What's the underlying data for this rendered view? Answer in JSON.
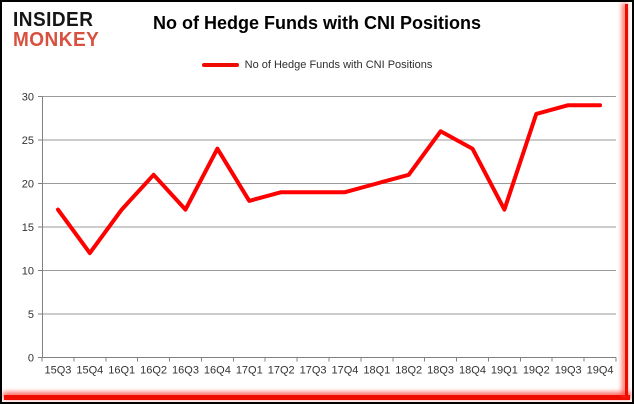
{
  "branding": {
    "line1": "INSIDER",
    "line2": "MONKEY"
  },
  "header": {
    "title": "No of Hedge Funds with CNI Positions"
  },
  "legend": {
    "label": "No of Hedge Funds with CNI Positions"
  },
  "theme": {
    "accent_red": "#ee0b00",
    "brand_red": "#d85140"
  },
  "chart_data": {
    "type": "line",
    "title": "No of Hedge Funds with CNI Positions",
    "categories": [
      "15Q3",
      "15Q4",
      "16Q1",
      "16Q2",
      "16Q3",
      "16Q4",
      "17Q1",
      "17Q2",
      "17Q3",
      "17Q4",
      "18Q1",
      "18Q2",
      "18Q3",
      "18Q4",
      "19Q1",
      "19Q2",
      "19Q3",
      "19Q4"
    ],
    "series": [
      {
        "name": "No of Hedge Funds with CNI Positions",
        "color": "#fe0000",
        "values": [
          17,
          12,
          17,
          21,
          17,
          24,
          18,
          19,
          19,
          19,
          20,
          21,
          26,
          24,
          17,
          28,
          29,
          29
        ]
      }
    ],
    "xlabel": "",
    "ylabel": "",
    "ylim": [
      0,
      30
    ],
    "yticks": [
      0,
      5,
      10,
      15,
      20,
      25,
      30
    ],
    "grid": true,
    "legend_position": "top-center",
    "colors": {
      "gridline": "#9a9a9a",
      "axis": "#808080",
      "tick_label": "#333333"
    }
  }
}
